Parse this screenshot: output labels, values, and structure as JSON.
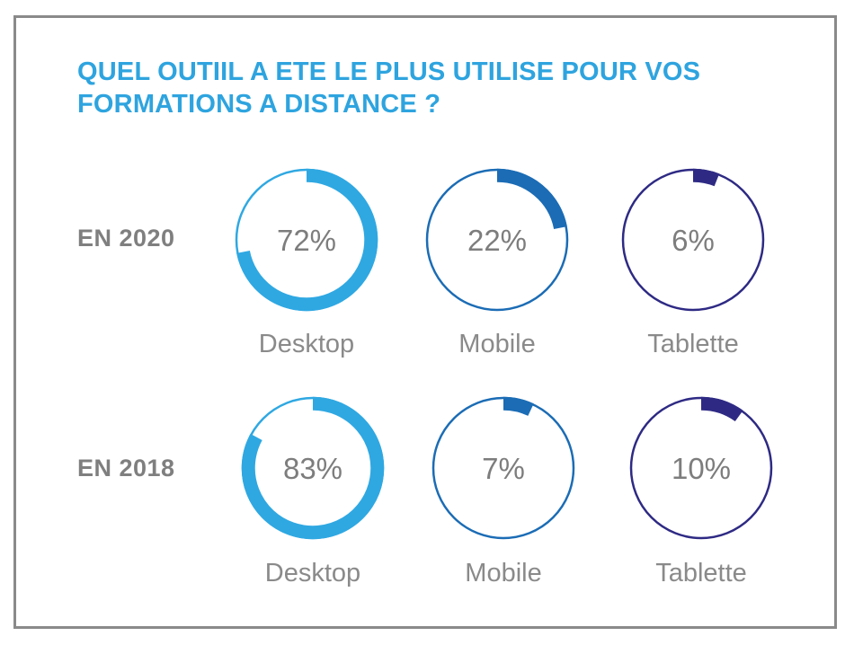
{
  "chart_data": {
    "type": "pie",
    "title_lines": [
      "QUEL OUTIIL A ETE LE PLUS UTILISE POUR VOS",
      "FORMATIONS A DISTANCE ?"
    ],
    "groups": [
      {
        "label": "EN 2020",
        "items": [
          {
            "category": "Desktop",
            "value": 72,
            "display": "72%",
            "color": "#2fa8e2"
          },
          {
            "category": "Mobile",
            "value": 22,
            "display": "22%",
            "color": "#1b6cb5"
          },
          {
            "category": "Tablette",
            "value": 6,
            "display": "6%",
            "color": "#2e2a84"
          }
        ]
      },
      {
        "label": "EN 2018",
        "items": [
          {
            "category": "Desktop",
            "value": 83,
            "display": "83%",
            "color": "#2fa8e2"
          },
          {
            "category": "Mobile",
            "value": 7,
            "display": "7%",
            "color": "#1b6cb5"
          },
          {
            "category": "Tablette",
            "value": 10,
            "display": "10%",
            "color": "#2e2a84"
          }
        ]
      }
    ]
  }
}
